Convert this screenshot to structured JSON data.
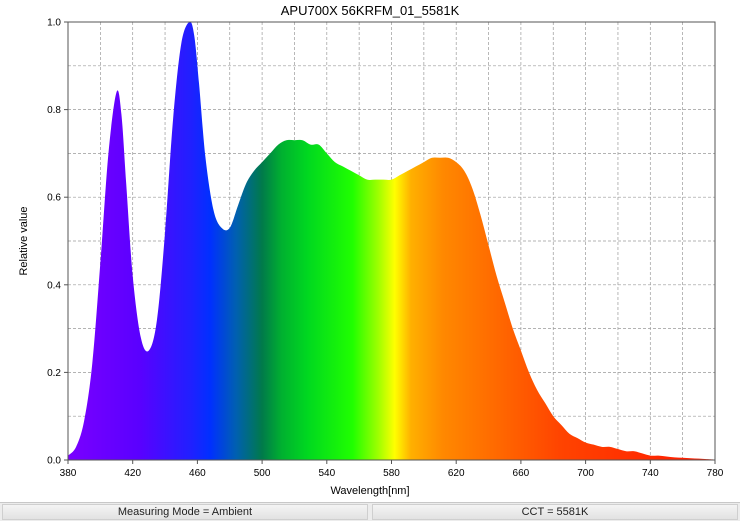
{
  "chart_data": {
    "type": "area",
    "title": "APU700X 56KRFM_01_5581K",
    "xlabel": "Wavelength[nm]",
    "ylabel": "Relative value",
    "xlim": [
      380,
      780
    ],
    "ylim": [
      0,
      1.0
    ],
    "grid": true,
    "x_ticks": [
      380,
      420,
      460,
      500,
      540,
      580,
      620,
      660,
      700,
      740,
      780
    ],
    "y_ticks": [
      0.0,
      0.2,
      0.4,
      0.6,
      0.8,
      1.0
    ],
    "x_tick_labels": [
      "380",
      "420",
      "460",
      "500",
      "540",
      "580",
      "620",
      "660",
      "700",
      "740",
      "780"
    ],
    "y_tick_labels": [
      "0.0",
      "0.2",
      "0.4",
      "0.6",
      "0.8",
      "1.0"
    ],
    "x": [
      380,
      385,
      390,
      395,
      400,
      405,
      410,
      413,
      416,
      420,
      425,
      430,
      435,
      440,
      445,
      450,
      455,
      458,
      461,
      465,
      470,
      475,
      480,
      485,
      490,
      495,
      500,
      505,
      510,
      515,
      520,
      525,
      530,
      535,
      540,
      545,
      550,
      555,
      560,
      565,
      570,
      575,
      580,
      585,
      590,
      595,
      600,
      605,
      610,
      615,
      620,
      625,
      630,
      635,
      640,
      645,
      650,
      655,
      660,
      665,
      670,
      675,
      680,
      685,
      690,
      695,
      700,
      705,
      710,
      715,
      720,
      725,
      730,
      735,
      740,
      745,
      750,
      755,
      760,
      765,
      770,
      775,
      780
    ],
    "values": [
      0.01,
      0.03,
      0.09,
      0.22,
      0.45,
      0.7,
      0.84,
      0.79,
      0.63,
      0.42,
      0.28,
      0.25,
      0.32,
      0.52,
      0.78,
      0.95,
      1.0,
      0.97,
      0.86,
      0.69,
      0.57,
      0.53,
      0.53,
      0.58,
      0.63,
      0.66,
      0.68,
      0.7,
      0.72,
      0.73,
      0.73,
      0.73,
      0.72,
      0.72,
      0.7,
      0.68,
      0.67,
      0.66,
      0.65,
      0.64,
      0.64,
      0.64,
      0.64,
      0.65,
      0.66,
      0.67,
      0.68,
      0.69,
      0.69,
      0.69,
      0.68,
      0.66,
      0.62,
      0.56,
      0.49,
      0.42,
      0.36,
      0.3,
      0.25,
      0.2,
      0.16,
      0.13,
      0.1,
      0.08,
      0.06,
      0.05,
      0.04,
      0.035,
      0.03,
      0.03,
      0.025,
      0.02,
      0.02,
      0.015,
      0.01,
      0.01,
      0.008,
      0.006,
      0.005,
      0.004,
      0.003,
      0.002,
      0.001
    ]
  },
  "status": {
    "left": "Measuring Mode = Ambient",
    "right": "CCT = 5581K"
  }
}
